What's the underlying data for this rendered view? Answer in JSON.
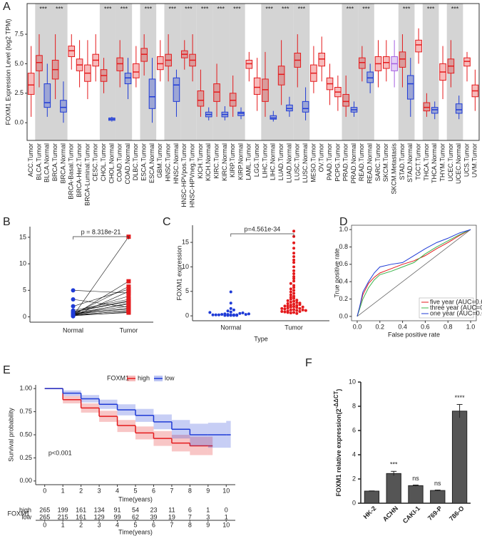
{
  "chart_data": [
    {
      "panel": "A",
      "type": "box",
      "ylabel": "FOXM1 Expression Level (log2 TPM)",
      "categories": [
        "ACC.Tumor",
        "BLCA.Tumor",
        "BLCA.Normal",
        "BRCA.Tumor",
        "BRCA.Normal",
        "BRCA-Basal.Tumor",
        "BRCA-Her2.Tumor",
        "BRCA-Luminal.Tumor",
        "CESC.Tumor",
        "CHOL.Tumor",
        "CHOL.Normal",
        "COAD.Tumor",
        "COAD.Normal",
        "DLBC.Tumor",
        "ESCA.Tumor",
        "ESCA.Normal",
        "GBM.Tumor",
        "HNSC.Tumor",
        "HNSC.Normal",
        "HNSC-HPVpos.Tumor",
        "HNSC-HPVneg.Tumor",
        "KICH.Tumor",
        "KICH.Normal",
        "KIRC.Tumor",
        "KIRC.Normal",
        "KIRP.Tumor",
        "KIRP.Normal",
        "LAML.Tumor",
        "LGG.Tumor",
        "LIHC.Tumor",
        "LIHC.Normal",
        "LUAD.Tumor",
        "LUAD.Normal",
        "LUSC.Tumor",
        "LUSC.Normal",
        "MESO.Tumor",
        "OV.Tumor",
        "PAAD.Tumor",
        "PCPG.Tumor",
        "PRAD.Tumor",
        "PRAD.Normal",
        "READ.Tumor",
        "READ.Normal",
        "SARC.Tumor",
        "SKCM.Tumor",
        "SKCM.Metastasis",
        "STAD.Tumor",
        "STAD.Normal",
        "TGCT.Tumor",
        "THCA.Tumor",
        "THCA.Normal",
        "THYM.Tumor",
        "UCEC.Tumor",
        "UCEC.Normal",
        "UCS.Tumor",
        "UVM.Tumor"
      ],
      "boxes": [
        [
          0.5,
          2.4,
          3.2,
          4.2,
          6.5
        ],
        [
          3,
          4.4,
          5.1,
          5.7,
          7.5
        ],
        [
          0.5,
          1.3,
          1.7,
          3.3,
          5
        ],
        [
          2,
          3.7,
          4.5,
          5.3,
          7.5
        ],
        [
          0,
          0.9,
          1.3,
          1.9,
          3.5
        ],
        [
          4.5,
          5.6,
          6.1,
          6.5,
          7.5
        ],
        [
          3,
          4.4,
          4.9,
          5.4,
          7
        ],
        [
          2,
          3.5,
          4.2,
          4.9,
          7
        ],
        [
          3.5,
          4.8,
          5.3,
          5.8,
          7.5
        ],
        [
          2.5,
          3.5,
          4,
          4.5,
          5.5
        ],
        [
          0.1,
          0.2,
          0.3,
          0.4,
          0.5
        ],
        [
          3,
          4.4,
          5,
          5.5,
          7
        ],
        [
          2,
          3.3,
          3.8,
          4.2,
          5.5
        ],
        [
          3,
          3.8,
          4.3,
          5,
          6.5
        ],
        [
          4,
          5.2,
          5.8,
          6.3,
          7.5
        ],
        [
          0,
          1.2,
          2.2,
          3.7,
          5.5
        ],
        [
          3.5,
          4.5,
          5,
          5.6,
          7
        ],
        [
          3.5,
          4.8,
          5.3,
          5.8,
          7.5
        ],
        [
          0.5,
          1.8,
          3.2,
          3.8,
          4.5
        ],
        [
          4.5,
          5.5,
          5.8,
          6.1,
          7
        ],
        [
          3.5,
          4.8,
          5.3,
          5.8,
          7.5
        ],
        [
          0.5,
          1.4,
          1.9,
          2.7,
          4.5
        ],
        [
          0.2,
          0.5,
          0.7,
          0.9,
          1.3
        ],
        [
          0.5,
          1.8,
          2.6,
          3.3,
          5
        ],
        [
          0.2,
          0.5,
          0.7,
          0.9,
          1.4
        ],
        [
          0.5,
          1.4,
          1.9,
          2.5,
          4
        ],
        [
          0.3,
          0.6,
          0.8,
          0.9,
          1.3
        ],
        [
          3.5,
          4.6,
          5,
          5.3,
          6
        ],
        [
          1,
          2.4,
          3,
          3.8,
          5.5
        ],
        [
          0.5,
          1.8,
          2.8,
          3.7,
          6
        ],
        [
          0.1,
          0.3,
          0.4,
          0.6,
          1
        ],
        [
          1.5,
          3.2,
          4.1,
          4.8,
          7
        ],
        [
          0.5,
          1,
          1.2,
          1.5,
          2.2
        ],
        [
          3,
          4.7,
          5.3,
          5.9,
          7.5
        ],
        [
          0.2,
          0.9,
          1.2,
          1.8,
          3
        ],
        [
          2.5,
          3.5,
          4.2,
          4.9,
          6.5
        ],
        [
          3.5,
          4.8,
          5.4,
          5.9,
          7.3
        ],
        [
          1.5,
          2.8,
          3.3,
          3.8,
          5
        ],
        [
          1,
          2.2,
          2.6,
          3,
          4
        ],
        [
          0.5,
          1.4,
          1.8,
          2.4,
          4
        ],
        [
          0.5,
          0.9,
          1.1,
          1.3,
          1.8
        ],
        [
          3.5,
          4.6,
          5.1,
          5.5,
          6.5
        ],
        [
          2.5,
          3.4,
          3.8,
          4.3,
          5
        ],
        [
          3,
          4.4,
          5,
          5.6,
          7
        ],
        [
          3.5,
          4.6,
          5.1,
          5.6,
          7
        ],
        [
          3,
          4.4,
          5,
          5.6,
          7
        ],
        [
          3,
          4.7,
          5.4,
          6,
          7.5
        ],
        [
          0.5,
          2,
          3.3,
          4,
          5.5
        ],
        [
          5,
          6,
          6.6,
          7,
          8
        ],
        [
          0.5,
          1,
          1.3,
          1.7,
          2.5
        ],
        [
          0.3,
          0.8,
          1.1,
          1.3,
          1.8
        ],
        [
          2,
          3.6,
          4.3,
          5,
          6.5
        ],
        [
          3,
          4.2,
          4.8,
          5.4,
          7
        ],
        [
          0.3,
          0.8,
          1.1,
          1.6,
          2.3
        ],
        [
          3.5,
          4.8,
          5.2,
          5.5,
          6
        ],
        [
          1,
          2.2,
          2.7,
          3.2,
          4.5
        ]
      ],
      "colors": [
        "#e41a1c",
        "#e41a1c",
        "#1f3bd6",
        "#e41a1c",
        "#1f3bd6",
        "#e41a1c",
        "#e41a1c",
        "#e41a1c",
        "#e41a1c",
        "#e41a1c",
        "#1f3bd6",
        "#e41a1c",
        "#1f3bd6",
        "#e41a1c",
        "#e41a1c",
        "#1f3bd6",
        "#e41a1c",
        "#e41a1c",
        "#1f3bd6",
        "#e41a1c",
        "#e41a1c",
        "#e41a1c",
        "#1f3bd6",
        "#e41a1c",
        "#1f3bd6",
        "#e41a1c",
        "#1f3bd6",
        "#e41a1c",
        "#e41a1c",
        "#e41a1c",
        "#1f3bd6",
        "#e41a1c",
        "#1f3bd6",
        "#e41a1c",
        "#1f3bd6",
        "#e41a1c",
        "#e41a1c",
        "#e41a1c",
        "#e41a1c",
        "#e41a1c",
        "#1f3bd6",
        "#e41a1c",
        "#1f3bd6",
        "#e41a1c",
        "#e41a1c",
        "#a55fe0",
        "#e41a1c",
        "#1f3bd6",
        "#e41a1c",
        "#e41a1c",
        "#1f3bd6",
        "#e41a1c",
        "#e41a1c",
        "#1f3bd6",
        "#e41a1c",
        "#e41a1c"
      ],
      "ylim": [
        -1.5,
        10.1
      ],
      "yticks": [
        {
          "value": 0,
          "label": "0.0"
        },
        {
          "value": 2.5,
          "label": "2.5"
        },
        {
          "value": 5,
          "label": "5.0"
        },
        {
          "value": 7.5,
          "label": "7.5"
        }
      ],
      "annotations": [
        {
          "text": "***",
          "x": "BLCA.Tumor"
        },
        {
          "text": "***",
          "x": "BRCA.Tumor"
        },
        {
          "text": "***",
          "x": "CHOL.Tumor"
        },
        {
          "text": "***",
          "x": "COAD.Tumor"
        },
        {
          "text": "***",
          "x": "ESCA.Tumor"
        },
        {
          "text": "***",
          "x": "HNSC.Tumor"
        },
        {
          "text": "***",
          "x": "HNSC-HPVpos.Tumor"
        },
        {
          "text": "***",
          "x": "KICH.Tumor"
        },
        {
          "text": "***",
          "x": "KIRC.Tumor"
        },
        {
          "text": "***",
          "x": "KIRP.Tumor"
        },
        {
          "text": "***",
          "x": "LIHC.Tumor"
        },
        {
          "text": "***",
          "x": "LUAD.Tumor"
        },
        {
          "text": "***",
          "x": "LUSC.Tumor"
        },
        {
          "text": "***",
          "x": "PRAD.Tumor"
        },
        {
          "text": "***",
          "x": "READ.Tumor"
        },
        {
          "text": "***",
          "x": "STAD.Tumor"
        },
        {
          "text": "***",
          "x": "THCA.Tumor"
        },
        {
          "text": "***",
          "x": "UCEC.Tumor"
        }
      ]
    },
    {
      "panel": "B",
      "type": "paired",
      "categories": [
        "Normal",
        "Tumor"
      ],
      "groups": [
        {
          "color": "#1f3bd6",
          "values": [
            0.2,
            0.3,
            0.5,
            0.1,
            0.8,
            1.2,
            0.4,
            0.6,
            5.0,
            3.3,
            0.3,
            0.2,
            1.0,
            0.5,
            0.7,
            0.4,
            0.9,
            0.3,
            2.0,
            0.6
          ]
        },
        {
          "color": "#e41a1c",
          "values": [
            15.1,
            6.7,
            5.7,
            4.8,
            3.9,
            3.3,
            2.6,
            2.0,
            4.5,
            1.8,
            1.2,
            0.9,
            3.0,
            1.5,
            2.4,
            1.1,
            2.9,
            0.8,
            5.2,
            1.6
          ]
        }
      ],
      "annotation": "p = 8.318e-21",
      "ylim": [
        -1,
        17
      ],
      "yticks": [
        0,
        5,
        10,
        15
      ]
    },
    {
      "panel": "C",
      "type": "swarm",
      "ylabel": "FOXM1 expression",
      "xlabel": "Type",
      "categories": [
        "Normal",
        "Tumor"
      ],
      "groups": [
        {
          "color": "#1f3bd6",
          "values": [
            0.1,
            0.2,
            0.1,
            0.3,
            0.2,
            0.1,
            0.4,
            0.2,
            0.3,
            0.5,
            0.1,
            0.2,
            0.8,
            1.0,
            1.5,
            2.6,
            4.9,
            0.6,
            0.2,
            0.3,
            1.2,
            0.1,
            0.2,
            0.4,
            0.7
          ]
        },
        {
          "color": "#e41a1c",
          "values": [
            17.3,
            16.2,
            14.9,
            13.8,
            12.8,
            12.1,
            11.4,
            10.9,
            10.0,
            9.2,
            8.6,
            8.0,
            7.6,
            7.1,
            6.6,
            6.2,
            5.8,
            5.5,
            5.2,
            4.9,
            4.6,
            4.3,
            4.0,
            3.8,
            3.6,
            3.4,
            3.2,
            3.0,
            2.8,
            2.7,
            2.5,
            2.4,
            2.2,
            2.1,
            2.0,
            1.9,
            1.8,
            1.7,
            1.6,
            1.5,
            1.4,
            1.3,
            1.2,
            1.1,
            1.0,
            0.9,
            0.8,
            0.7,
            0.6,
            0.5,
            2.3,
            1.8,
            1.2,
            0.9,
            2.6,
            1.5,
            3.1,
            1.1,
            0.7,
            2.0
          ]
        }
      ],
      "annotation": "p=4.561e-34",
      "ylim": [
        -1,
        18.5
      ],
      "yticks": [
        0,
        5,
        10,
        15
      ]
    },
    {
      "panel": "D",
      "type": "line",
      "xlabel": "False positive rate",
      "ylabel": "True positive rate",
      "x": [
        0,
        0.02,
        0.05,
        0.1,
        0.15,
        0.2,
        0.3,
        0.4,
        0.5,
        0.6,
        0.7,
        0.8,
        0.9,
        1.0
      ],
      "series": [
        {
          "name": "five year (AUC=0.639)",
          "color": "#e41a1c",
          "values": [
            0,
            0.1,
            0.25,
            0.38,
            0.45,
            0.5,
            0.55,
            0.6,
            0.64,
            0.7,
            0.78,
            0.85,
            0.93,
            1.0
          ]
        },
        {
          "name": "three year (AUC=0.625)",
          "color": "#3cb44b",
          "values": [
            0,
            0.08,
            0.2,
            0.33,
            0.42,
            0.48,
            0.52,
            0.57,
            0.62,
            0.72,
            0.8,
            0.87,
            0.94,
            1.0
          ]
        },
        {
          "name": "one year (AUC=0.656)",
          "color": "#1f3bd6",
          "values": [
            0,
            0.1,
            0.28,
            0.4,
            0.5,
            0.57,
            0.6,
            0.62,
            0.7,
            0.78,
            0.85,
            0.9,
            0.96,
            1.0
          ]
        }
      ],
      "xlim": [
        -0.05,
        1.05
      ],
      "ylim": [
        -0.05,
        1.05
      ],
      "xticks": [
        {
          "value": 0,
          "label": "0.0"
        },
        {
          "value": 0.2,
          "label": "0.2"
        },
        {
          "value": 0.4,
          "label": "0.4"
        },
        {
          "value": 0.6,
          "label": "0.6"
        },
        {
          "value": 0.8,
          "label": "0.8"
        },
        {
          "value": 1,
          "label": "1.0"
        }
      ],
      "yticks": [
        {
          "value": 0,
          "label": "0.0"
        },
        {
          "value": 0.2,
          "label": "0.2"
        },
        {
          "value": 0.4,
          "label": "0.4"
        },
        {
          "value": 0.6,
          "label": "0.6"
        },
        {
          "value": 0.8,
          "label": "0.8"
        },
        {
          "value": 1,
          "label": "1.0"
        }
      ],
      "legend": "lower right"
    },
    {
      "panel": "E",
      "type": "survival",
      "legend_title": "FOXM1",
      "xlabel": "Time(years)",
      "ylabel": "Survival probability",
      "annotation": "p<0.001",
      "series": [
        {
          "name": "high",
          "color": "#e41a1c",
          "x": [
            0,
            1,
            2,
            3,
            4,
            5,
            6,
            7,
            8,
            9
          ],
          "values": [
            1,
            0.88,
            0.79,
            0.7,
            0.6,
            0.52,
            0.46,
            0.41,
            0.38,
            0.38
          ],
          "lower": [
            1,
            0.84,
            0.74,
            0.64,
            0.53,
            0.45,
            0.38,
            0.32,
            0.28,
            0.28
          ],
          "upper": [
            1,
            0.92,
            0.84,
            0.76,
            0.66,
            0.59,
            0.54,
            0.5,
            0.48,
            0.48
          ],
          "at_risk": [
            265,
            199,
            161,
            134,
            91,
            54,
            23,
            11,
            6,
            1,
            0
          ]
        },
        {
          "name": "low",
          "color": "#1f3bd6",
          "x": [
            0,
            1,
            2,
            3,
            4,
            5,
            6,
            7,
            8,
            9,
            10
          ],
          "values": [
            1,
            0.95,
            0.89,
            0.83,
            0.77,
            0.71,
            0.64,
            0.56,
            0.5,
            0.5,
            0.5
          ],
          "lower": [
            1,
            0.92,
            0.85,
            0.78,
            0.71,
            0.64,
            0.56,
            0.46,
            0.38,
            0.36,
            0.36
          ],
          "upper": [
            1,
            0.98,
            0.93,
            0.88,
            0.83,
            0.78,
            0.72,
            0.66,
            0.62,
            0.63,
            0.65
          ],
          "at_risk": [
            265,
            215,
            161,
            129,
            99,
            62,
            39,
            19,
            7,
            3,
            1
          ]
        }
      ],
      "xlim": [
        -0.5,
        10.5
      ],
      "xticks": [
        0,
        1,
        2,
        3,
        4,
        5,
        6,
        7,
        8,
        9,
        10
      ],
      "ylim": [
        -0.04,
        1.04
      ],
      "yticks": [
        {
          "value": 0,
          "label": "0.00"
        },
        {
          "value": 0.25,
          "label": "0.25"
        },
        {
          "value": 0.5,
          "label": "0.50"
        },
        {
          "value": 0.75,
          "label": "0.75"
        },
        {
          "value": 1,
          "label": "1.00"
        }
      ]
    },
    {
      "panel": "F",
      "type": "bar",
      "ylabel": "FOXM1 relative expression(2",
      "ylabel_superscript": "-ΔΔCT",
      "ylabel_suffix": ")",
      "categories": [
        "HK-2",
        "ACHN",
        "CAKI-1",
        "769-P",
        "786-O"
      ],
      "values": [
        1,
        2.45,
        1.45,
        1.05,
        7.6
      ],
      "errors": [
        0.02,
        0.18,
        0.05,
        0.04,
        0.55
      ],
      "significance": [
        null,
        "***",
        "ns",
        "ns",
        "****"
      ],
      "color": "#555555",
      "ylim": [
        0,
        10
      ],
      "yticks": [
        0,
        2,
        4,
        6,
        8,
        10
      ]
    }
  ]
}
